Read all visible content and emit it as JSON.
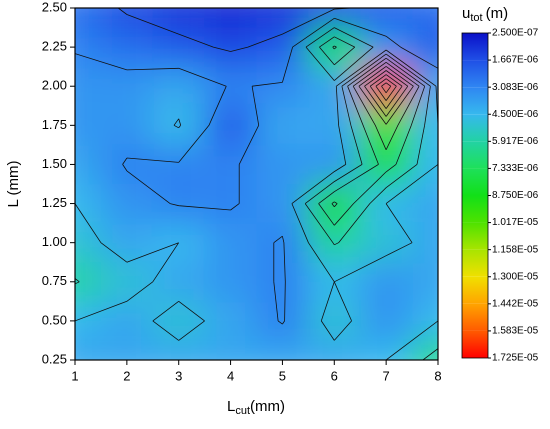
{
  "chart_data": {
    "type": "contour",
    "xlabel": "L",
    "xlabel_sub": "cut",
    "xlabel_unit": "(mm)",
    "ylabel": "L (mm)",
    "colorbar_title": "u",
    "colorbar_title_sub": "tot",
    "colorbar_title_unit": "(m)",
    "x": [
      1,
      2,
      3,
      4,
      5,
      6,
      7,
      8
    ],
    "y": [
      0.25,
      0.5,
      0.75,
      1.0,
      1.25,
      1.5,
      1.75,
      2.0,
      2.25,
      2.5
    ],
    "z": [
      [
        4e-06,
        4e-06,
        4e-06,
        4e-06,
        4e-06,
        4e-06,
        4.5e-06,
        6.5e-06
      ],
      [
        4.5e-06,
        4e-06,
        5e-06,
        4e-06,
        3e-06,
        5e-06,
        3.5e-06,
        4.5e-06
      ],
      [
        6e-06,
        5e-06,
        4e-06,
        3.5e-06,
        3e-06,
        4.5e-06,
        3.5e-06,
        4e-06
      ],
      [
        5e-06,
        4e-06,
        4.5e-06,
        3.5e-06,
        3e-06,
        6e-06,
        5e-06,
        4e-06
      ],
      [
        4.5e-06,
        3.5e-06,
        3e-06,
        3e-06,
        3.5e-06,
        9e-06,
        4.5e-06,
        4e-06
      ],
      [
        4e-06,
        3e-06,
        3e-06,
        3e-06,
        3.5e-06,
        3.5e-06,
        8e-06,
        4.5e-06
      ],
      [
        3.5e-06,
        3.5e-06,
        4.6e-06,
        2e-06,
        4e-06,
        4e-06,
        1e-05,
        4.5e-06
      ],
      [
        3.5e-06,
        3.5e-06,
        4e-06,
        3e-06,
        3.2e-06,
        4e-06,
        1.7e-05,
        4e-06
      ],
      [
        3e-06,
        2.5e-06,
        2e-06,
        1.5e-06,
        2e-06,
        7.5e-06,
        3.5e-06,
        2e-06
      ],
      [
        2.5e-06,
        1.5e-06,
        1e-06,
        8e-07,
        1e-06,
        1.5e-06,
        2e-06,
        2.5e-06
      ]
    ],
    "xlim": [
      1,
      8
    ],
    "ylim": [
      0.25,
      2.5
    ],
    "xticks": [
      1,
      2,
      3,
      4,
      5,
      6,
      7,
      8
    ],
    "yticks": [
      0.25,
      {
        "value": 0.5,
        "label": "0.50"
      },
      0.75,
      {
        "value": 1.0,
        "label": "1.00"
      },
      1.25,
      {
        "value": 1.5,
        "label": "1.50"
      },
      1.75,
      {
        "value": 2.0,
        "label": "2.00"
      },
      2.25,
      {
        "value": 2.5,
        "label": "2.50"
      }
    ],
    "levels": [
      {
        "value": 2.5e-07,
        "label": "2.500E-07"
      },
      {
        "value": 1.667e-06,
        "label": "1.667E-06"
      },
      {
        "value": 3.083e-06,
        "label": "3.083E-06"
      },
      {
        "value": 4.5e-06,
        "label": "4.500E-06"
      },
      {
        "value": 5.917e-06,
        "label": "5.917E-06"
      },
      {
        "value": 7.333e-06,
        "label": "7.333E-06"
      },
      {
        "value": 8.75e-06,
        "label": "8.750E-06"
      },
      {
        "value": 1.017e-05,
        "label": "1.017E-05"
      },
      {
        "value": 1.158e-05,
        "label": "1.158E-05"
      },
      {
        "value": 1.3e-05,
        "label": "1.300E-05"
      },
      {
        "value": 1.442e-05,
        "label": "1.442E-05"
      },
      {
        "value": 1.583e-05,
        "label": "1.583E-05"
      },
      {
        "value": 1.725e-05,
        "label": "1.725E-05"
      }
    ],
    "colors": [
      "#0a10c8",
      "#1f4fe6",
      "#2f86f2",
      "#36b8ee",
      "#22d2a4",
      "#1ee05a",
      "#12e018",
      "#4ee200",
      "#a8e400",
      "#f0e000",
      "#ffa400",
      "#ff5a00",
      "#ff0000"
    ]
  }
}
